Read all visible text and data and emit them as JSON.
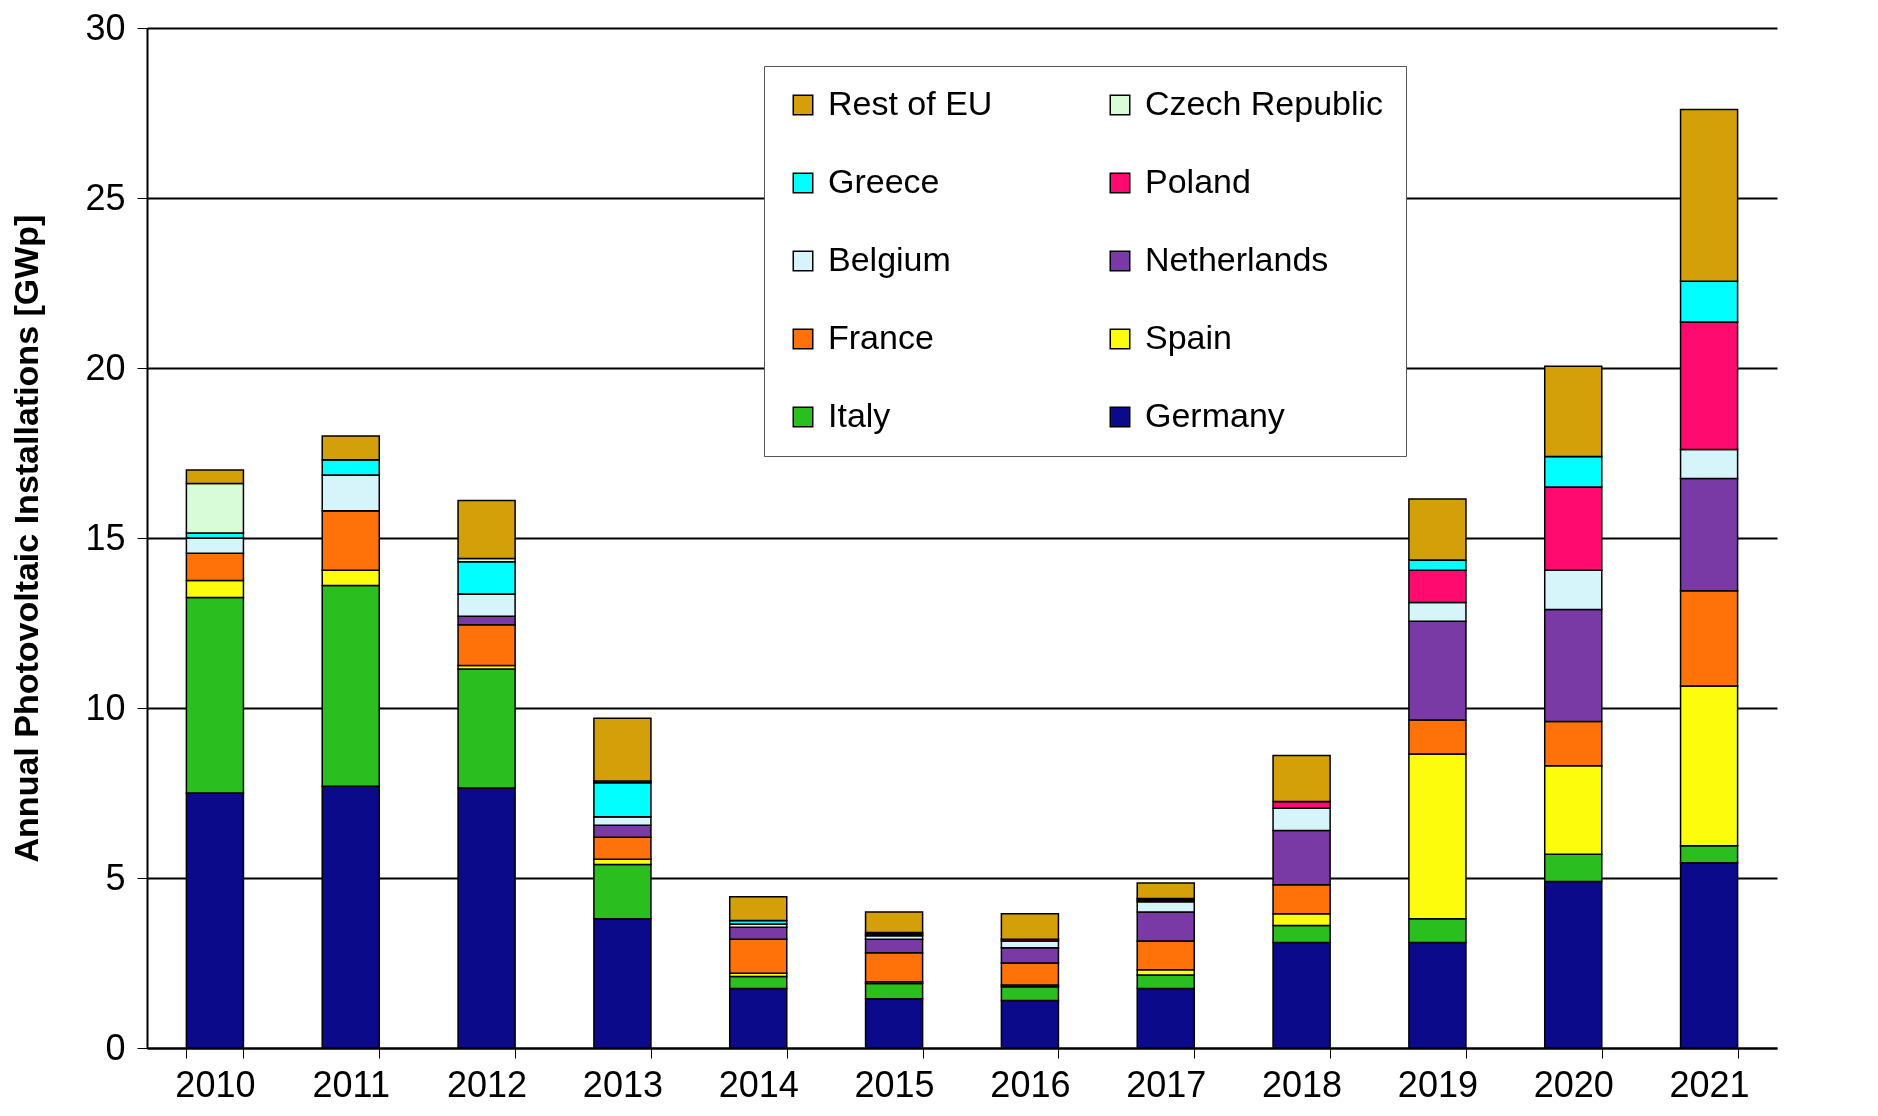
{
  "chart_data": {
    "type": "bar",
    "stacked": true,
    "ylabel": "Annual Photovoltaic Installations [GWp]",
    "categories": [
      "2010",
      "2011",
      "2012",
      "2013",
      "2014",
      "2015",
      "2016",
      "2017",
      "2018",
      "2019",
      "2020",
      "2021"
    ],
    "series": [
      {
        "name": "Germany",
        "color": "#0a0a8a",
        "values": [
          7.5,
          7.7,
          7.65,
          3.8,
          1.75,
          1.45,
          1.4,
          1.75,
          3.1,
          3.1,
          4.9,
          5.45
        ]
      },
      {
        "name": "Italy",
        "color": "#2abf1f",
        "values": [
          5.75,
          5.9,
          3.5,
          1.6,
          0.35,
          0.45,
          0.4,
          0.4,
          0.5,
          0.7,
          0.8,
          0.5
        ]
      },
      {
        "name": "Spain",
        "color": "#fcfc0c",
        "values": [
          0.5,
          0.45,
          0.1,
          0.15,
          0.1,
          0.05,
          0.05,
          0.15,
          0.35,
          4.85,
          2.6,
          4.7
        ]
      },
      {
        "name": "France",
        "color": "#ff720a",
        "values": [
          0.8,
          1.75,
          1.2,
          0.65,
          1.0,
          0.85,
          0.65,
          0.85,
          0.85,
          1.0,
          1.3,
          2.8
        ]
      },
      {
        "name": "Netherlands",
        "color": "#7a3aa6",
        "values": [
          0,
          0,
          0.25,
          0.35,
          0.35,
          0.4,
          0.45,
          0.85,
          1.6,
          2.9,
          3.3,
          3.3
        ]
      },
      {
        "name": "Belgium",
        "color": "#d5f5fb",
        "values": [
          0.45,
          1.05,
          0.65,
          0.25,
          0.1,
          0.1,
          0.2,
          0.3,
          0.65,
          0.55,
          1.15,
          0.85
        ]
      },
      {
        "name": "Poland",
        "color": "#ff0a6e",
        "values": [
          0,
          0,
          0,
          0,
          0,
          0.05,
          0.05,
          0.05,
          0.2,
          0.95,
          2.45,
          3.75
        ]
      },
      {
        "name": "Greece",
        "color": "#00ffff",
        "values": [
          0.15,
          0.45,
          0.95,
          1.0,
          0.1,
          0.05,
          0,
          0.05,
          null,
          0.3,
          0.9,
          1.2
        ]
      },
      {
        "name": "Czech Republic",
        "color": "#d8fcd8",
        "values": [
          1.45,
          0,
          0.1,
          0.05,
          0,
          0,
          0,
          0,
          0,
          0,
          0,
          0
        ]
      },
      {
        "name": "Rest of EU",
        "color": "#d4a00a",
        "values": [
          0.4,
          0.7,
          1.7,
          1.85,
          0.7,
          0.6,
          0.75,
          0.45,
          1.35,
          1.8,
          2.65,
          5.05
        ]
      }
    ],
    "ylim": [
      0,
      30
    ],
    "yticks": [
      0,
      5,
      10,
      15,
      20,
      25,
      30
    ],
    "grid": "y",
    "legend": "top"
  }
}
